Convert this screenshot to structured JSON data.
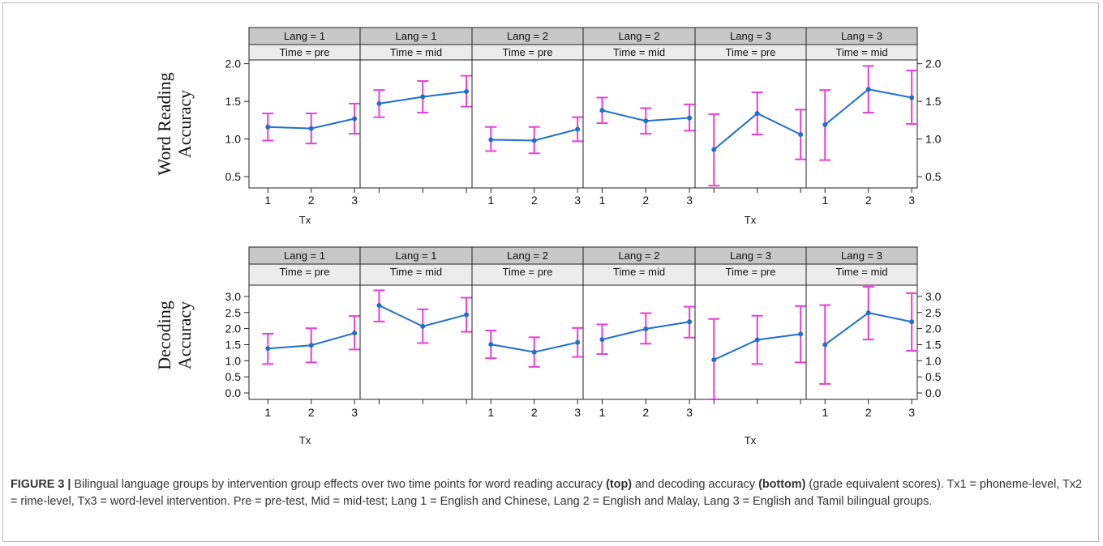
{
  "colors": {
    "line": "#1f6fcf",
    "errorbar": "#e83fd6",
    "strip": "#c8c8c8",
    "strip2": "#ececec"
  },
  "chart_data": [
    {
      "type": "line",
      "ylabel": [
        "Word Reading",
        "Accuracy"
      ],
      "xlabel": "Tx",
      "ylim": [
        0.35,
        2.05
      ],
      "yticks": [
        "0.5",
        "1.0",
        "1.5",
        "2.0"
      ],
      "ytick_values": [
        0.5,
        1.0,
        1.5,
        2.0
      ],
      "xticks": [
        "1",
        "2",
        "3"
      ],
      "panels": [
        {
          "lang": "Lang = 1",
          "time": "Time = pre",
          "x": [
            1,
            2,
            3
          ],
          "y": [
            1.16,
            1.14,
            1.27
          ],
          "lower": [
            0.98,
            0.94,
            1.07
          ],
          "upper": [
            1.34,
            1.34,
            1.47
          ]
        },
        {
          "lang": "Lang = 1",
          "time": "Time = mid",
          "x": [
            1,
            2,
            3
          ],
          "y": [
            1.47,
            1.56,
            1.63
          ],
          "lower": [
            1.29,
            1.35,
            1.43
          ],
          "upper": [
            1.65,
            1.77,
            1.84
          ]
        },
        {
          "lang": "Lang = 2",
          "time": "Time = pre",
          "x": [
            1,
            2,
            3
          ],
          "y": [
            0.99,
            0.98,
            1.13
          ],
          "lower": [
            0.84,
            0.81,
            0.97
          ],
          "upper": [
            1.16,
            1.16,
            1.29
          ]
        },
        {
          "lang": "Lang = 2",
          "time": "Time = mid",
          "x": [
            1,
            2,
            3
          ],
          "y": [
            1.38,
            1.24,
            1.28
          ],
          "lower": [
            1.21,
            1.07,
            1.11
          ],
          "upper": [
            1.55,
            1.41,
            1.46
          ]
        },
        {
          "lang": "Lang = 3",
          "time": "Time = pre",
          "x": [
            1,
            2,
            3
          ],
          "y": [
            0.86,
            1.34,
            1.06
          ],
          "lower": [
            0.38,
            1.06,
            0.73
          ],
          "upper": [
            1.33,
            1.62,
            1.39
          ]
        },
        {
          "lang": "Lang = 3",
          "time": "Time = mid",
          "x": [
            1,
            2,
            3
          ],
          "y": [
            1.19,
            1.66,
            1.55
          ],
          "lower": [
            0.72,
            1.35,
            1.2
          ],
          "upper": [
            1.65,
            1.97,
            1.91
          ]
        }
      ]
    },
    {
      "type": "line",
      "ylabel": [
        "Decoding",
        "Accuracy"
      ],
      "xlabel": "Tx",
      "ylim": [
        -0.2,
        3.35
      ],
      "yticks": [
        "0.0",
        "0.5",
        "1.0",
        "1.5",
        "2.0",
        "2.5",
        "3.0"
      ],
      "ytick_values": [
        0.0,
        0.5,
        1.0,
        1.5,
        2.0,
        2.5,
        3.0
      ],
      "xticks": [
        "1",
        "2",
        "3"
      ],
      "panels": [
        {
          "lang": "Lang = 1",
          "time": "Time = pre",
          "x": [
            1,
            2,
            3
          ],
          "y": [
            1.38,
            1.48,
            1.86
          ],
          "lower": [
            0.9,
            0.95,
            1.35
          ],
          "upper": [
            1.84,
            2.01,
            2.39
          ]
        },
        {
          "lang": "Lang = 1",
          "time": "Time = mid",
          "x": [
            1,
            2,
            3
          ],
          "y": [
            2.72,
            2.07,
            2.43
          ],
          "lower": [
            2.22,
            1.55,
            1.9
          ],
          "upper": [
            3.19,
            2.6,
            2.96
          ]
        },
        {
          "lang": "Lang = 2",
          "time": "Time = pre",
          "x": [
            1,
            2,
            3
          ],
          "y": [
            1.51,
            1.27,
            1.57
          ],
          "lower": [
            1.08,
            0.81,
            1.12
          ],
          "upper": [
            1.94,
            1.73,
            2.02
          ]
        },
        {
          "lang": "Lang = 2",
          "time": "Time = mid",
          "x": [
            1,
            2,
            3
          ],
          "y": [
            1.66,
            1.99,
            2.21
          ],
          "lower": [
            1.21,
            1.53,
            1.72
          ],
          "upper": [
            2.13,
            2.48,
            2.68
          ]
        },
        {
          "lang": "Lang = 3",
          "time": "Time = pre",
          "x": [
            1,
            2,
            3
          ],
          "y": [
            1.03,
            1.65,
            1.83
          ],
          "lower": [
            -0.25,
            0.9,
            0.95
          ],
          "upper": [
            2.3,
            2.4,
            2.7
          ]
        },
        {
          "lang": "Lang = 3",
          "time": "Time = mid",
          "x": [
            1,
            2,
            3
          ],
          "y": [
            1.5,
            2.49,
            2.21
          ],
          "lower": [
            0.28,
            1.66,
            1.31
          ],
          "upper": [
            2.73,
            3.3,
            3.1
          ]
        }
      ]
    }
  ],
  "caption": {
    "label": "FIGURE 3 |",
    "part1": " Bilingual language groups by intervention group effects over two time points for word reading accuracy ",
    "bold_top": "(top)",
    "part2": " and decoding accuracy ",
    "bold_bottom": "(bottom)",
    "part3": " (grade equivalent scores). Tx1 = phoneme-level, Tx2 = rime-level, Tx3 = word-level intervention. Pre = pre-test, Mid = mid-test; Lang 1 = English and Chinese, Lang 2 = English and Malay, Lang 3 = English and Tamil bilingual groups."
  }
}
